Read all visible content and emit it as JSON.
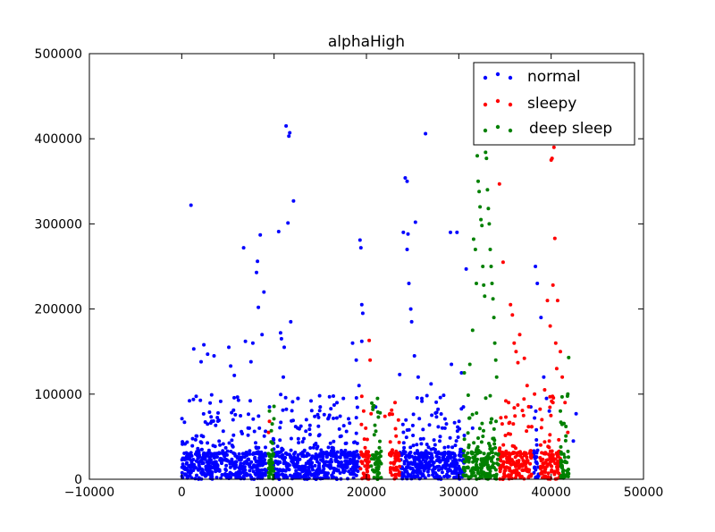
{
  "chart_data": {
    "type": "scatter",
    "title": "alphaHigh",
    "xlabel": "",
    "ylabel": "",
    "xlim": [
      -10000,
      50000
    ],
    "ylim": [
      0,
      500000
    ],
    "xticks": [
      "−10000",
      "0",
      "10000",
      "20000",
      "30000",
      "40000",
      "50000"
    ],
    "yticks": [
      "0",
      "100000",
      "200000",
      "300000",
      "400000",
      "500000"
    ],
    "xtick_values": [
      -10000,
      0,
      10000,
      20000,
      30000,
      40000,
      50000
    ],
    "ytick_values": [
      0,
      100000,
      200000,
      300000,
      400000,
      500000
    ],
    "grid": false,
    "legend_position": "top-right",
    "series": [
      {
        "name": "normal",
        "color": "#0000ff",
        "segments": [
          [
            0,
            9200
          ],
          [
            9900,
            19200
          ],
          [
            23600,
            30600
          ],
          [
            38100,
            38700
          ]
        ],
        "points": [
          [
            1000,
            322000
          ],
          [
            1300,
            153000
          ],
          [
            2100,
            138000
          ],
          [
            2400,
            158000
          ],
          [
            2800,
            147000
          ],
          [
            3500,
            145000
          ],
          [
            5100,
            155000
          ],
          [
            5300,
            133000
          ],
          [
            5700,
            122000
          ],
          [
            6700,
            272000
          ],
          [
            6900,
            162000
          ],
          [
            7500,
            138000
          ],
          [
            7700,
            160000
          ],
          [
            8100,
            243000
          ],
          [
            8200,
            256000
          ],
          [
            8300,
            202000
          ],
          [
            8500,
            287000
          ],
          [
            8700,
            170000
          ],
          [
            8900,
            220000
          ],
          [
            9500,
            85000
          ],
          [
            10500,
            291000
          ],
          [
            10700,
            172000
          ],
          [
            10800,
            165000
          ],
          [
            11000,
            120000
          ],
          [
            11100,
            155000
          ],
          [
            11300,
            415000
          ],
          [
            11500,
            301000
          ],
          [
            11600,
            403000
          ],
          [
            11700,
            407000
          ],
          [
            11800,
            185000
          ],
          [
            12100,
            327000
          ],
          [
            12600,
            95000
          ],
          [
            13500,
            70000
          ],
          [
            14000,
            92000
          ],
          [
            15000,
            85000
          ],
          [
            16000,
            97000
          ],
          [
            16800,
            72000
          ],
          [
            17500,
            95000
          ],
          [
            18500,
            160000
          ],
          [
            18900,
            140000
          ],
          [
            19200,
            110000
          ],
          [
            19300,
            281000
          ],
          [
            19400,
            272000
          ],
          [
            19500,
            205000
          ],
          [
            19600,
            195000
          ],
          [
            19500,
            162000
          ],
          [
            21000,
            85000
          ],
          [
            23600,
            123000
          ],
          [
            24000,
            290000
          ],
          [
            24200,
            354000
          ],
          [
            24400,
            350000
          ],
          [
            24500,
            288000
          ],
          [
            24400,
            270000
          ],
          [
            24600,
            230000
          ],
          [
            24800,
            200000
          ],
          [
            24900,
            185000
          ],
          [
            25200,
            145000
          ],
          [
            25300,
            302000
          ],
          [
            25600,
            120000
          ],
          [
            26400,
            406000
          ],
          [
            26000,
            95000
          ],
          [
            27000,
            112000
          ],
          [
            28000,
            96000
          ],
          [
            28500,
            60000
          ],
          [
            29100,
            290000
          ],
          [
            29200,
            135000
          ],
          [
            29800,
            290000
          ],
          [
            30300,
            125000
          ],
          [
            30500,
            85000
          ],
          [
            30800,
            247000
          ],
          [
            31500,
            60000
          ],
          [
            37800,
            85000
          ],
          [
            38200,
            72000
          ],
          [
            38300,
            250000
          ],
          [
            38500,
            230000
          ],
          [
            38900,
            190000
          ],
          [
            39200,
            120000
          ],
          [
            39500,
            95000
          ],
          [
            39800,
            80000
          ],
          [
            42400,
            45000
          ],
          [
            42700,
            77000
          ]
        ]
      },
      {
        "name": "sleepy",
        "color": "#ff0000",
        "segments": [
          [
            19300,
            20300
          ],
          [
            22500,
            23600
          ],
          [
            34300,
            37900
          ],
          [
            38800,
            41000
          ]
        ],
        "points": [
          [
            9500,
            68000
          ],
          [
            9400,
            55000
          ],
          [
            19700,
            80000
          ],
          [
            20300,
            163000
          ],
          [
            20400,
            140000
          ],
          [
            20500,
            77000
          ],
          [
            22000,
            74000
          ],
          [
            22500,
            76000
          ],
          [
            23100,
            90000
          ],
          [
            34400,
            347000
          ],
          [
            34800,
            255000
          ],
          [
            35100,
            73000
          ],
          [
            35400,
            90000
          ],
          [
            35600,
            205000
          ],
          [
            35800,
            193000
          ],
          [
            36000,
            160000
          ],
          [
            36200,
            150000
          ],
          [
            36400,
            137000
          ],
          [
            36600,
            170000
          ],
          [
            37100,
            142000
          ],
          [
            37400,
            110000
          ],
          [
            38200,
            100000
          ],
          [
            39000,
            70000
          ],
          [
            39600,
            210000
          ],
          [
            39900,
            180000
          ],
          [
            40000,
            375000
          ],
          [
            40100,
            377000
          ],
          [
            40200,
            228000
          ],
          [
            40300,
            390000
          ],
          [
            40400,
            283000
          ],
          [
            40500,
            160000
          ],
          [
            40600,
            130000
          ],
          [
            40700,
            210000
          ],
          [
            41000,
            150000
          ],
          [
            41200,
            120000
          ],
          [
            41500,
            90000
          ],
          [
            41800,
            55000
          ],
          [
            40200,
            90000
          ],
          [
            39300,
            105000
          ]
        ]
      },
      {
        "name": "deep sleep",
        "color": "#008000",
        "segments": [
          [
            9300,
            10000
          ],
          [
            20500,
            21600
          ],
          [
            30500,
            34300
          ],
          [
            41000,
            41900
          ]
        ],
        "points": [
          [
            9500,
            80000
          ],
          [
            9800,
            65000
          ],
          [
            20700,
            82000
          ],
          [
            21200,
            95000
          ],
          [
            21300,
            73000
          ],
          [
            30600,
            125000
          ],
          [
            31200,
            135000
          ],
          [
            31500,
            175000
          ],
          [
            31600,
            282000
          ],
          [
            31800,
            270000
          ],
          [
            31900,
            230000
          ],
          [
            32000,
            380000
          ],
          [
            32100,
            350000
          ],
          [
            32200,
            338000
          ],
          [
            32300,
            320000
          ],
          [
            32400,
            305000
          ],
          [
            32500,
            298000
          ],
          [
            32600,
            250000
          ],
          [
            32700,
            228000
          ],
          [
            32800,
            215000
          ],
          [
            32900,
            384000
          ],
          [
            33000,
            377000
          ],
          [
            33100,
            340000
          ],
          [
            33200,
            318000
          ],
          [
            33300,
            300000
          ],
          [
            33400,
            270000
          ],
          [
            33500,
            250000
          ],
          [
            33600,
            230000
          ],
          [
            33700,
            212000
          ],
          [
            33800,
            190000
          ],
          [
            33900,
            160000
          ],
          [
            34000,
            140000
          ],
          [
            34100,
            120000
          ],
          [
            41000,
            80000
          ],
          [
            41600,
            62000
          ],
          [
            41800,
            100000
          ],
          [
            41900,
            143000
          ]
        ]
      }
    ]
  }
}
